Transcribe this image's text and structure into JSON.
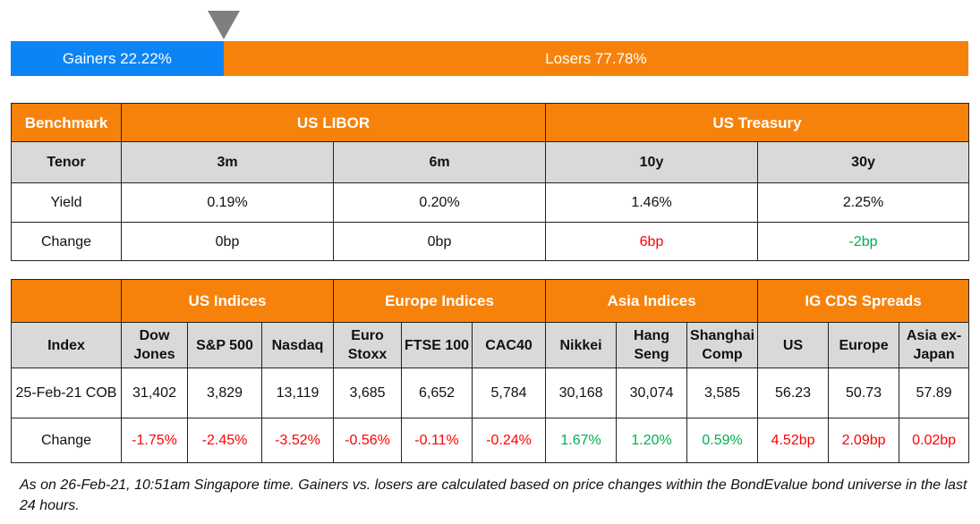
{
  "breadth": {
    "gainers_label": "Gainers 22.22%",
    "losers_label": "Losers 77.78%",
    "gainers_pct": 22.22,
    "losers_pct": 77.78,
    "colors": {
      "gainers": "#0B84F6",
      "losers": "#F7820B"
    }
  },
  "rates": {
    "header": [
      "Benchmark",
      "US LIBOR",
      "US Treasury"
    ],
    "tenor": [
      "Tenor",
      "3m",
      "6m",
      "10y",
      "30y"
    ],
    "yield": [
      "Yield",
      "0.19%",
      "0.20%",
      "1.46%",
      "2.25%"
    ],
    "change": [
      "Change",
      "0bp",
      "0bp",
      "6bp",
      "-2bp"
    ]
  },
  "indices": {
    "groups": [
      "US Indices",
      "Europe Indices",
      "Asia Indices",
      "IG CDS Spreads"
    ],
    "columns": [
      [
        "Index"
      ],
      [
        "Dow",
        "Jones"
      ],
      [
        "S&P 500"
      ],
      [
        "Nasdaq"
      ],
      [
        "Euro",
        "Stoxx"
      ],
      [
        "FTSE 100"
      ],
      [
        "CAC40"
      ],
      [
        "Nikkei"
      ],
      [
        "Hang",
        "Seng"
      ],
      [
        "Shanghai",
        "Comp"
      ],
      [
        "US"
      ],
      [
        "Europe"
      ],
      [
        "Asia ex-",
        "Japan"
      ]
    ],
    "values": [
      "25-Feb-21 COB",
      "31,402",
      "3,829",
      "13,119",
      "3,685",
      "6,652",
      "5,784",
      "30,168",
      "30,074",
      "3,585",
      "56.23",
      "50.73",
      "57.89"
    ],
    "changes": [
      "Change",
      "-1.75%",
      "-2.45%",
      "-3.52%",
      "-0.56%",
      "-0.11%",
      "-0.24%",
      "1.67%",
      "1.20%",
      "0.59%",
      "4.52bp",
      "2.09bp",
      "0.02bp"
    ],
    "change_colors": [
      "",
      "red",
      "red",
      "red",
      "red",
      "red",
      "red",
      "green",
      "green",
      "green",
      "red",
      "red",
      "red"
    ]
  },
  "footnote": "As on 26-Feb-21, 10:51am Singapore time. Gainers vs. losers are calculated based on price changes within the BondEvalue bond universe in the last 24 hours."
}
